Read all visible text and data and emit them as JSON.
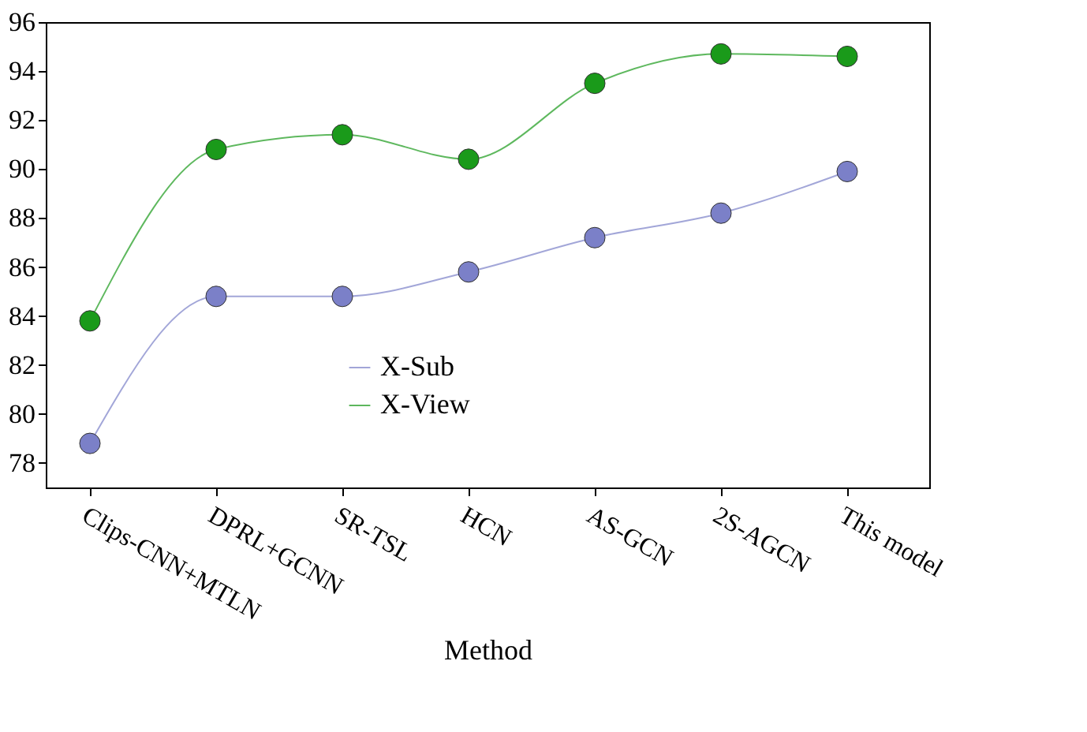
{
  "chart_data": {
    "type": "line",
    "xlabel": "Method",
    "categories": [
      "Clips-CNN+MTLN",
      "DPRL+GCNN",
      "SR-TSL",
      "HCN",
      "AS-GCN",
      "2S-AGCN",
      "This model"
    ],
    "series": [
      {
        "name": "X-Sub",
        "color": "#7b80c8",
        "values": [
          78.8,
          84.8,
          84.8,
          85.8,
          87.2,
          88.2,
          89.9
        ]
      },
      {
        "name": "X-View",
        "color": "#1a9a1a",
        "values": [
          83.8,
          90.8,
          91.4,
          90.4,
          93.5,
          94.7,
          94.6
        ]
      }
    ],
    "ylim": [
      77,
      96
    ],
    "yticks": [
      78,
      80,
      82,
      84,
      86,
      88,
      90,
      92,
      94,
      96
    ],
    "grid": false,
    "legend": "bottom",
    "marker": "circle",
    "line_style": "solid"
  }
}
